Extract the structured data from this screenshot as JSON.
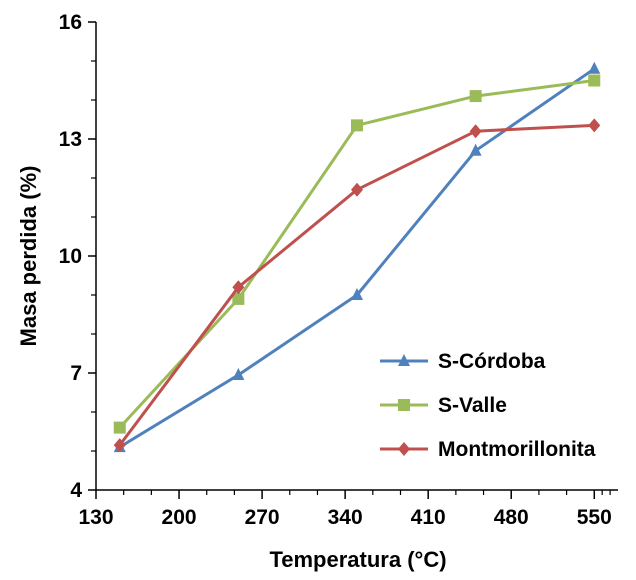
{
  "chart_data": {
    "type": "line",
    "xlabel": "Temperatura (°C)",
    "ylabel": "Masa perdida (%)",
    "xlim": [
      130,
      570
    ],
    "ylim": [
      4,
      16
    ],
    "xticks": [
      "130",
      "200",
      "270",
      "340",
      "410",
      "480",
      "550"
    ],
    "yticks": [
      "4",
      "7",
      "10",
      "13",
      "16"
    ],
    "x": [
      150,
      250,
      350,
      450,
      550
    ],
    "legend_position": "lower-right",
    "grid": false,
    "series": [
      {
        "name": "S-Córdoba",
        "values": [
          5.1,
          6.95,
          9.0,
          12.7,
          14.8
        ],
        "color": "#4F81BD",
        "marker": "triangle"
      },
      {
        "name": "S-Valle",
        "values": [
          5.6,
          8.9,
          13.35,
          14.1,
          14.5
        ],
        "color": "#9BBB59",
        "marker": "square"
      },
      {
        "name": "Montmorillonita",
        "values": [
          5.15,
          9.2,
          11.7,
          13.2,
          13.35
        ],
        "color": "#C0504D",
        "marker": "diamond"
      }
    ]
  }
}
